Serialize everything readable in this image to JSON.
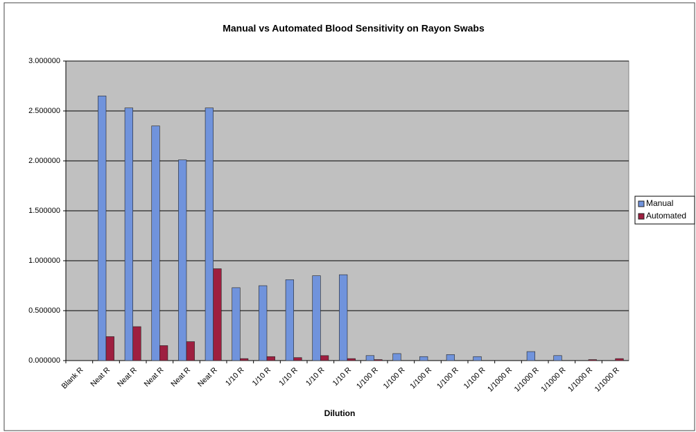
{
  "chart_data": {
    "type": "bar",
    "title": "Manual vs Automated Blood Sensitivity on Rayon Swabs",
    "x_label": "Dilution",
    "categories": [
      "Blank R",
      "Neat R",
      "Neat R",
      "Neat R",
      "Neat R",
      "Neat R",
      "1/10 R",
      "1/10 R",
      "1/10 R",
      "1/10 R",
      "1/10 R",
      "1/100 R",
      "1/100 R",
      "1/100 R",
      "1/100 R",
      "1/100 R",
      "1/1000 R",
      "1/1000 R",
      "1/1000 R",
      "1/1000 R",
      "1/1000 R"
    ],
    "series": [
      {
        "name": "Manual",
        "color": "#7093dc",
        "values": [
          0,
          2.65,
          2.53,
          2.35,
          2.01,
          2.53,
          0.73,
          0.75,
          0.81,
          0.85,
          0.86,
          0.05,
          0.07,
          0.04,
          0.06,
          0.04,
          0,
          0.09,
          0.05,
          0,
          0
        ]
      },
      {
        "name": "Automated",
        "color": "#9e1f40",
        "values": [
          0,
          0.24,
          0.34,
          0.15,
          0.19,
          0.92,
          0.02,
          0.04,
          0.03,
          0.05,
          0.02,
          0.01,
          0,
          0,
          0,
          0,
          0,
          0,
          0,
          0.01,
          0.02
        ]
      }
    ],
    "ylim": [
      0,
      3
    ],
    "yticks": [
      {
        "value": 0,
        "label": "0.000000"
      },
      {
        "value": 0.5,
        "label": "0.500000"
      },
      {
        "value": 1,
        "label": "1.000000"
      },
      {
        "value": 1.5,
        "label": "1.500000"
      },
      {
        "value": 2,
        "label": "2.000000"
      },
      {
        "value": 2.5,
        "label": "2.500000"
      },
      {
        "value": 3,
        "label": "3.000000"
      }
    ],
    "grid": true,
    "legend": "right",
    "plot_background": "#c0c0c0"
  }
}
